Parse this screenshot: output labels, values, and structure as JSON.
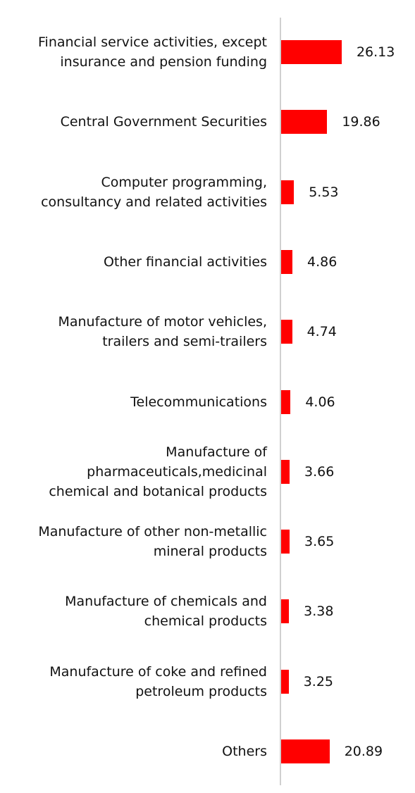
{
  "chart_data": {
    "type": "bar",
    "orientation": "horizontal",
    "color": "#ff0000",
    "categories": [
      "Financial service activities, except\ninsurance and pension funding",
      "Central Government Securities",
      "Computer programming,\nconsultancy and related activities",
      "Other financial activities",
      "Manufacture of motor vehicles,\ntrailers and semi-trailers",
      "Telecommunications",
      "Manufacture of\npharmaceuticals,medicinal\nchemical and botanical products",
      "Manufacture of other non-metallic\nmineral products",
      "Manufacture of chemicals and\nchemical products",
      "Manufacture of coke and refined\npetroleum products",
      "Others"
    ],
    "values": [
      26.13,
      19.86,
      5.53,
      4.86,
      4.74,
      4.06,
      3.66,
      3.65,
      3.38,
      3.25,
      20.89
    ]
  }
}
